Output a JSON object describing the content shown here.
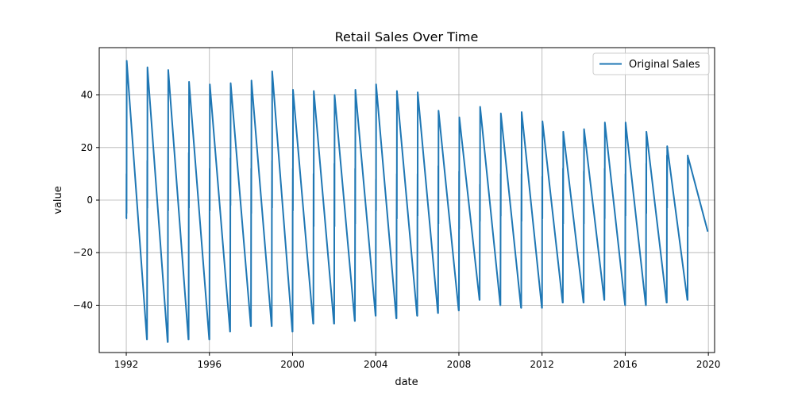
{
  "chart_data": {
    "type": "line",
    "title": "Retail Sales Over Time",
    "xlabel": "date",
    "ylabel": "value",
    "xlim": [
      1990.7,
      2020.3
    ],
    "ylim": [
      -58,
      58
    ],
    "x_ticks": [
      1992,
      1996,
      2000,
      2004,
      2008,
      2012,
      2016,
      2020
    ],
    "x_tick_labels": [
      "1992",
      "1996",
      "2000",
      "2004",
      "2008",
      "2012",
      "2016",
      "2020"
    ],
    "y_ticks": [
      -40,
      -20,
      0,
      20,
      40
    ],
    "y_tick_labels": [
      "−40",
      "−20",
      "0",
      "20",
      "40"
    ],
    "grid": true,
    "legend_position": "top-right",
    "series": [
      {
        "name": "Original Sales",
        "color": "#1f77b4",
        "x_unit": "year",
        "cycles": [
          {
            "year": 1992,
            "low": -7,
            "jump": 10,
            "peak": 53,
            "trough": -53
          },
          {
            "year": 1993,
            "low": -5,
            "jump": 15,
            "peak": 50.5,
            "trough": -54
          },
          {
            "year": 1994,
            "low": -6,
            "jump": 20,
            "peak": 49.5,
            "trough": -53
          },
          {
            "year": 1995,
            "low": -5,
            "jump": 18,
            "peak": 45,
            "trough": -53
          },
          {
            "year": 1996,
            "low": -6,
            "jump": 12,
            "peak": 44,
            "trough": -50
          },
          {
            "year": 1997,
            "low": -4,
            "jump": 16,
            "peak": 44.5,
            "trough": -48
          },
          {
            "year": 1998,
            "low": -7,
            "jump": 12,
            "peak": 45.5,
            "trough": -48
          },
          {
            "year": 1999,
            "low": -5,
            "jump": 15,
            "peak": 49,
            "trough": -50
          },
          {
            "year": 2000,
            "low": -6,
            "jump": 12,
            "peak": 42,
            "trough": -47
          },
          {
            "year": 2001,
            "low": -12,
            "jump": 10,
            "peak": 41.5,
            "trough": -47
          },
          {
            "year": 2002,
            "low": -12,
            "jump": 14,
            "peak": 40,
            "trough": -46
          },
          {
            "year": 2003,
            "low": -11,
            "jump": 12,
            "peak": 42,
            "trough": -44
          },
          {
            "year": 2004,
            "low": -6,
            "jump": 8,
            "peak": 44,
            "trough": -45
          },
          {
            "year": 2005,
            "low": -9,
            "jump": 10,
            "peak": 41.5,
            "trough": -44
          },
          {
            "year": 2006,
            "low": -8,
            "jump": 10,
            "peak": 41,
            "trough": -43
          },
          {
            "year": 2007,
            "low": -11,
            "jump": 13,
            "peak": 34,
            "trough": -42
          },
          {
            "year": 2008,
            "low": -13,
            "jump": 11,
            "peak": 31.5,
            "trough": -38
          },
          {
            "year": 2009,
            "low": -10,
            "jump": 6,
            "peak": 35.5,
            "trough": -40
          },
          {
            "year": 2010,
            "low": -8,
            "jump": 10,
            "peak": 33,
            "trough": -41
          },
          {
            "year": 2011,
            "low": -10,
            "jump": 10,
            "peak": 33.5,
            "trough": -41
          },
          {
            "year": 2012,
            "low": -9,
            "jump": 9,
            "peak": 30,
            "trough": -39
          },
          {
            "year": 2013,
            "low": -11,
            "jump": 12,
            "peak": 26,
            "trough": -39
          },
          {
            "year": 2014,
            "low": -11,
            "jump": 11,
            "peak": 27,
            "trough": -38
          },
          {
            "year": 2015,
            "low": -9,
            "jump": 12,
            "peak": 29.5,
            "trough": -40
          },
          {
            "year": 2016,
            "low": -8,
            "jump": 10,
            "peak": 29.5,
            "trough": -40
          },
          {
            "year": 2017,
            "low": -7,
            "jump": 14,
            "peak": 26,
            "trough": -39
          },
          {
            "year": 2018,
            "low": -5,
            "jump": 17,
            "peak": 20.5,
            "trough": -38
          },
          {
            "year": 2019,
            "low": -12,
            "jump": 17,
            "peak": 16.5,
            "trough": -12
          }
        ]
      }
    ]
  }
}
